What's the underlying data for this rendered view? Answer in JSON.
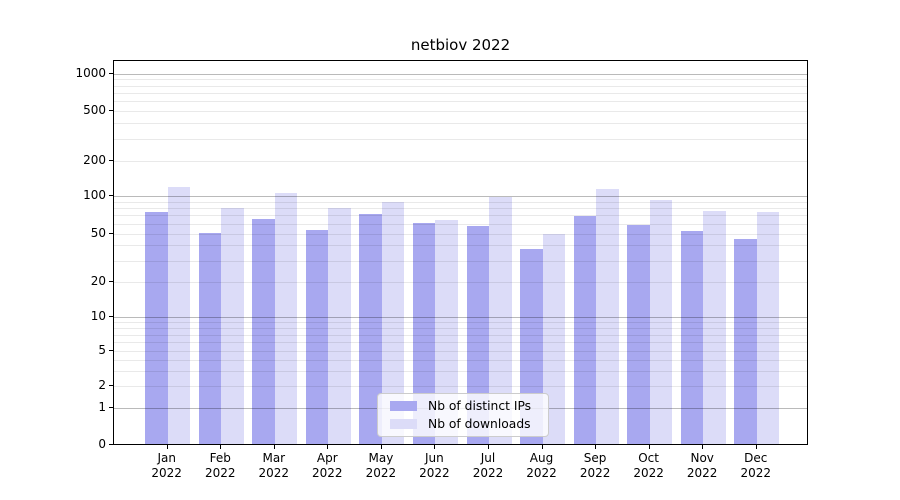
{
  "chart_data": {
    "type": "bar",
    "title": "netbiov 2022",
    "categories": [
      "Jan",
      "Feb",
      "Mar",
      "Apr",
      "May",
      "Jun",
      "Jul",
      "Aug",
      "Sep",
      "Oct",
      "Nov",
      "Dec"
    ],
    "category_year": "2022",
    "series": [
      {
        "name": "Nb of distinct IPs",
        "color": "#a8a8f0",
        "values": [
          73,
          49,
          64,
          52,
          70,
          59,
          56,
          36,
          67,
          57,
          51,
          44
        ]
      },
      {
        "name": "Nb of downloads",
        "color": "#dcdcf8",
        "values": [
          115,
          78,
          103,
          78,
          87,
          63,
          95,
          48,
          111,
          91,
          74,
          72
        ]
      }
    ],
    "y_axis": {
      "ticks": [
        0,
        1,
        2,
        5,
        10,
        20,
        50,
        100,
        200,
        500,
        1000
      ],
      "scale": "symlog",
      "ylim": [
        0,
        1200
      ]
    },
    "xlabel": "",
    "ylabel": "",
    "legend_position": "lower-center",
    "grid": true
  },
  "colors": {
    "bar_distinct_ips": "#a8a8f0",
    "bar_downloads": "#dcdcf8",
    "axis": "#000000",
    "major_grid": "#b9b9b9",
    "minor_grid": "#e8e8e8",
    "background": "#ffffff",
    "legend_border": "#cccccc"
  }
}
